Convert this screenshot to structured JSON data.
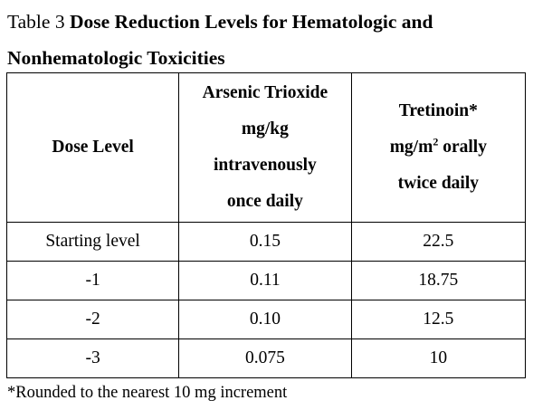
{
  "title": {
    "label": "Table 3",
    "text_line1": "Dose Reduction Levels for Hematologic and",
    "text_line2": "Nonhematologic Toxicities"
  },
  "table": {
    "headers": {
      "dose_level": "Dose Level",
      "arsenic": [
        "Arsenic Trioxide",
        "mg/kg",
        "intravenously",
        "once daily"
      ],
      "tretinoin_line1": "Tretinoin*",
      "tretinoin_unit_pre": "mg/m",
      "tretinoin_unit_sup": "2",
      "tretinoin_unit_post": " orally",
      "tretinoin_line3": "twice daily"
    },
    "rows": [
      {
        "level": "Starting level",
        "arsenic": "0.15",
        "tretinoin": "22.5"
      },
      {
        "level": "-1",
        "arsenic": "0.11",
        "tretinoin": "18.75"
      },
      {
        "level": "-2",
        "arsenic": "0.10",
        "tretinoin": "12.5"
      },
      {
        "level": "-3",
        "arsenic": "0.075",
        "tretinoin": "10"
      }
    ]
  },
  "footnote": "*Rounded to the nearest 10 mg increment"
}
